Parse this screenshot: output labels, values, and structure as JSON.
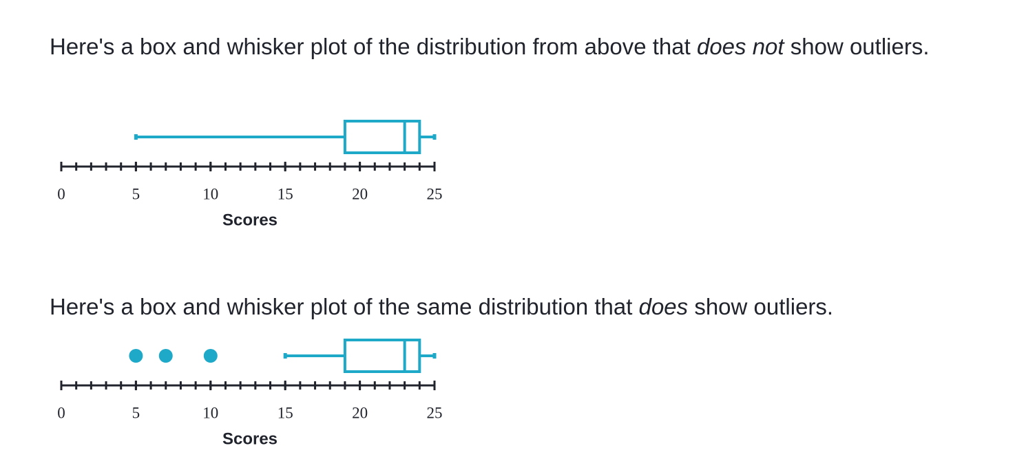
{
  "paragraphs": [
    [
      "Here's a box and whisker plot of the distribution from above that ",
      "does not",
      " show outliers."
    ],
    [
      "Here's a box and whisker plot of the same distribution that ",
      "does",
      " show outliers."
    ]
  ],
  "chart_data": [
    {
      "type": "box",
      "xlabel": "Scores",
      "color": "#1fa9c9",
      "xlim": [
        0,
        25
      ],
      "xticks": [
        0,
        5,
        10,
        15,
        20,
        25
      ],
      "xminorticks": [
        0,
        1,
        2,
        3,
        4,
        5,
        6,
        7,
        8,
        9,
        10,
        11,
        12,
        13,
        14,
        15,
        16,
        17,
        18,
        19,
        20,
        21,
        22,
        23,
        24,
        25
      ],
      "whislo": 5,
      "q1": 19,
      "med": 23,
      "q3": 24,
      "whishi": 25,
      "fliers": []
    },
    {
      "type": "box",
      "xlabel": "Scores",
      "color": "#1fa9c9",
      "xlim": [
        0,
        25
      ],
      "xticks": [
        0,
        5,
        10,
        15,
        20,
        25
      ],
      "xminorticks": [
        0,
        1,
        2,
        3,
        4,
        5,
        6,
        7,
        8,
        9,
        10,
        11,
        12,
        13,
        14,
        15,
        16,
        17,
        18,
        19,
        20,
        21,
        22,
        23,
        24,
        25
      ],
      "whislo": 15,
      "q1": 19,
      "med": 23,
      "q3": 24,
      "whishi": 25,
      "fliers": [
        5,
        7,
        10
      ]
    }
  ]
}
